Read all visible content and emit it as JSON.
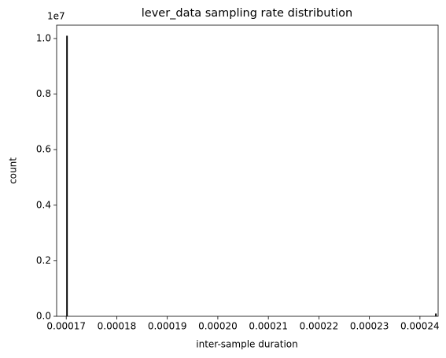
{
  "chart_data": {
    "type": "histogram",
    "title": "lever_data sampling rate distribution",
    "xlabel": "inter-sample duration",
    "ylabel": "count",
    "y_offset_label": "1e7",
    "bins": [
      0.00017,
      0.0001703,
      0.000243,
      0.0002433
    ],
    "values": [
      10100000,
      0,
      100000
    ],
    "color": "#000000",
    "xlim": [
      0.0001681,
      0.0002436
    ],
    "xticks": [
      0.00017,
      0.00018,
      0.00019,
      {
        "value": 0.0002,
        "label": "0.00020"
      },
      0.00021,
      0.00022,
      0.00023,
      0.00024
    ],
    "ylim": [
      0,
      10480000
    ],
    "yticks": [
      {
        "value": 0,
        "label": "0.0"
      },
      {
        "value": 2000000,
        "label": "0.2"
      },
      {
        "value": 4000000,
        "label": "0.4"
      },
      {
        "value": 6000000,
        "label": "0.6"
      },
      {
        "value": 8000000,
        "label": "0.8"
      },
      {
        "value": 10000000,
        "label": "1.0"
      }
    ]
  }
}
